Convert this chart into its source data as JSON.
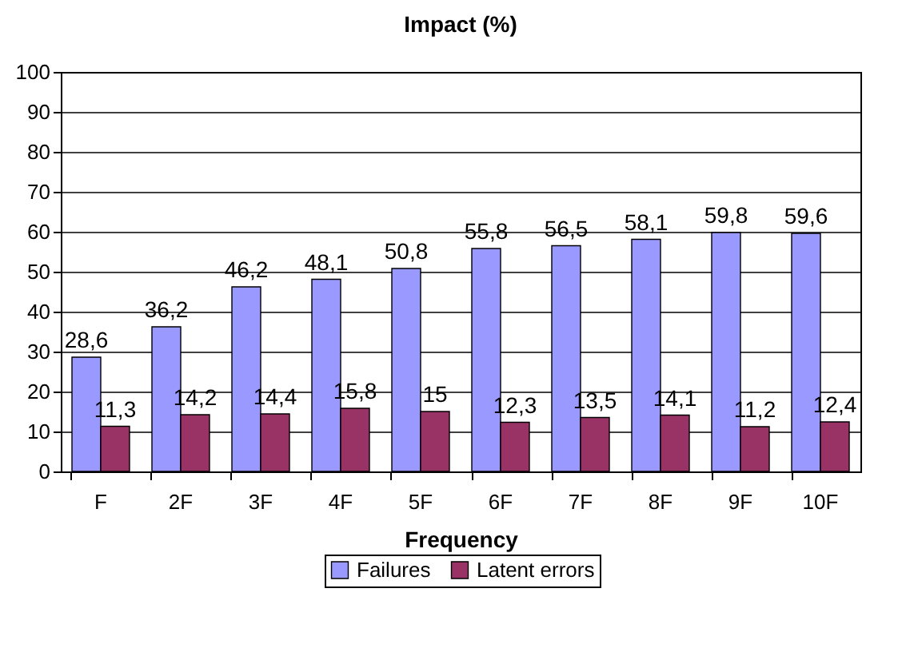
{
  "chart_data": {
    "type": "bar",
    "title": "Impact (%)",
    "xlabel": "Frequency",
    "categories": [
      "F",
      "2F",
      "3F",
      "4F",
      "5F",
      "6F",
      "7F",
      "8F",
      "9F",
      "10F"
    ],
    "series": [
      {
        "name": "Failures",
        "color": "#9999ff",
        "values": [
          28.6,
          36.2,
          46.2,
          48.1,
          50.8,
          55.8,
          56.5,
          58.1,
          59.8,
          59.6
        ],
        "value_labels": [
          "28,6",
          "36,2",
          "46,2",
          "48,1",
          "50,8",
          "55,8",
          "56,5",
          "58,1",
          "59,8",
          "59,6"
        ]
      },
      {
        "name": "Latent errors",
        "color": "#993366",
        "values": [
          11.3,
          14.2,
          14.4,
          15.8,
          15,
          12.3,
          13.5,
          14.1,
          11.2,
          12.4
        ],
        "value_labels": [
          "11,3",
          "14,2",
          "14,4",
          "15,8",
          "15",
          "12,3",
          "13,5",
          "14,1",
          "11,2",
          "12,4"
        ]
      }
    ],
    "ylim": [
      0,
      100
    ],
    "yticks": [
      0,
      10,
      20,
      30,
      40,
      50,
      60,
      70,
      80,
      90,
      100
    ],
    "grid": "y",
    "legend": "bottom"
  }
}
